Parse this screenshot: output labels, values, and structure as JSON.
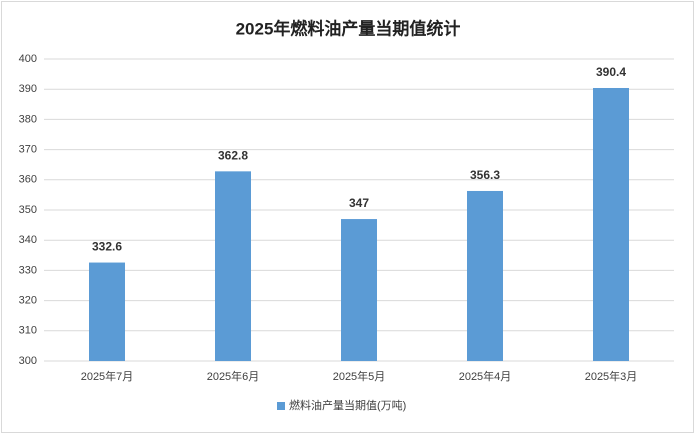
{
  "chart_data": {
    "type": "bar",
    "title": "2025年燃料油产量当期值统计",
    "categories": [
      "2025年7月",
      "2025年6月",
      "2025年5月",
      "2025年4月",
      "2025年3月"
    ],
    "series": [
      {
        "name": "燃料油产量当期值(万吨)",
        "color": "#5b9bd5",
        "values": [
          332.6,
          362.8,
          347,
          356.3,
          390.4
        ]
      }
    ],
    "ylim": [
      300,
      400
    ],
    "yticks": [
      300,
      310,
      320,
      330,
      340,
      350,
      360,
      370,
      380,
      390,
      400
    ],
    "grid": true,
    "legend": "bottom"
  }
}
